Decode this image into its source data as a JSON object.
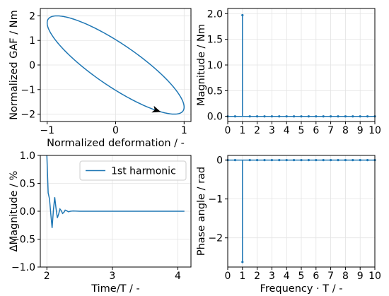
{
  "colors": {
    "line": "#1f77b4",
    "grid": "#e3e3e3",
    "axis": "#000000"
  },
  "chart_data": [
    {
      "id": "loop",
      "type": "line",
      "xlabel": "Normalized deformation / -",
      "ylabel": "Normalized GAF / Nm",
      "xlim": [
        -1.1,
        1.1
      ],
      "ylim": [
        -2.3,
        2.3
      ],
      "xticks": [
        -1,
        0,
        1
      ],
      "xtick_labels": [
        "−1",
        "0",
        "1"
      ],
      "yticks": [
        -2,
        -1,
        0,
        1,
        2
      ],
      "ytick_labels": [
        "−2",
        "−1",
        "0",
        "1",
        "2"
      ],
      "grid": true,
      "series": [
        {
          "kind": "ellipse",
          "x_amplitude": 1.0,
          "y_amplitude": 2.0,
          "phase_rad": -2.6,
          "arrow_at_x": 0.6,
          "arrow_direction": "down-right"
        }
      ]
    },
    {
      "id": "magnitude",
      "type": "stem",
      "xlabel": "",
      "ylabel": "Magnitude / Nm",
      "xlim": [
        0,
        10
      ],
      "ylim": [
        -0.1,
        2.1
      ],
      "xticks": [
        0,
        1,
        2,
        3,
        4,
        5,
        6,
        7,
        8,
        9,
        10
      ],
      "xtick_labels": [
        "0",
        "1",
        "2",
        "3",
        "4",
        "5",
        "6",
        "7",
        "8",
        "9",
        "10"
      ],
      "yticks": [
        0,
        0.5,
        1,
        1.5,
        2
      ],
      "ytick_labels": [
        "0.0",
        "0.5",
        "1.0",
        "1.5",
        "2.0"
      ],
      "grid": true,
      "x": [
        0,
        0.5,
        1,
        1.5,
        2,
        2.5,
        3,
        3.5,
        4,
        4.5,
        5,
        5.5,
        6,
        6.5,
        7,
        7.5,
        8,
        8.5,
        9,
        9.5,
        10
      ],
      "values": [
        0,
        0,
        1.97,
        0,
        0,
        0,
        0,
        0,
        0,
        0,
        0,
        0,
        0,
        0,
        0,
        0,
        0,
        0,
        0,
        0,
        0
      ]
    },
    {
      "id": "delta",
      "type": "line",
      "xlabel": "Time/T / -",
      "ylabel": "ΔMagnitude / %",
      "xlim": [
        1.9,
        4.2
      ],
      "ylim": [
        -1.0,
        1.0
      ],
      "xticks": [
        2,
        3,
        4
      ],
      "xtick_labels": [
        "2",
        "3",
        "4"
      ],
      "yticks": [
        -1.0,
        -0.5,
        0.0,
        0.5,
        1.0
      ],
      "ytick_labels": [
        "−1.0",
        "−0.5",
        "0.0",
        "0.5",
        "1.0"
      ],
      "grid": true,
      "legend": {
        "position": "top-right",
        "entries": [
          "1st harmonic"
        ]
      },
      "series": [
        {
          "name": "1st harmonic",
          "x": [
            2.0,
            2.02,
            2.04,
            2.06,
            2.08,
            2.1,
            2.12,
            2.14,
            2.16,
            2.18,
            2.2,
            2.22,
            2.24,
            2.26,
            2.28,
            2.3,
            2.33,
            2.36,
            2.4,
            2.5,
            2.6,
            3.0,
            3.5,
            4.0,
            4.1
          ],
          "y": [
            1.05,
            0.33,
            0.22,
            -0.05,
            -0.3,
            0.02,
            0.25,
            0.05,
            -0.12,
            -0.05,
            0.04,
            0.01,
            -0.04,
            -0.02,
            0.02,
            0.01,
            -0.01,
            0.0,
            0.005,
            0.0,
            0.0,
            0.0,
            0.0,
            0.0,
            0.0
          ]
        }
      ]
    },
    {
      "id": "phase",
      "type": "stem",
      "xlabel": "Frequency · T / -",
      "ylabel": "Phase angle / rad",
      "xlim": [
        0,
        10
      ],
      "ylim": [
        -2.75,
        0.12
      ],
      "xticks": [
        0,
        1,
        2,
        3,
        4,
        5,
        6,
        7,
        8,
        9,
        10
      ],
      "xtick_labels": [
        "0",
        "1",
        "2",
        "3",
        "4",
        "5",
        "6",
        "7",
        "8",
        "9",
        "10"
      ],
      "yticks": [
        -2,
        -1,
        0
      ],
      "ytick_labels": [
        "−2",
        "−1",
        "0"
      ],
      "grid": true,
      "x": [
        0,
        0.5,
        1,
        1.5,
        2,
        2.5,
        3,
        3.5,
        4,
        4.5,
        5,
        5.5,
        6,
        6.5,
        7,
        7.5,
        8,
        8.5,
        9,
        9.5,
        10
      ],
      "values": [
        0,
        0,
        -2.62,
        0,
        0,
        0,
        0,
        0,
        0,
        0,
        0,
        0,
        0,
        0,
        0,
        0,
        0,
        0,
        0,
        0,
        0
      ]
    }
  ]
}
